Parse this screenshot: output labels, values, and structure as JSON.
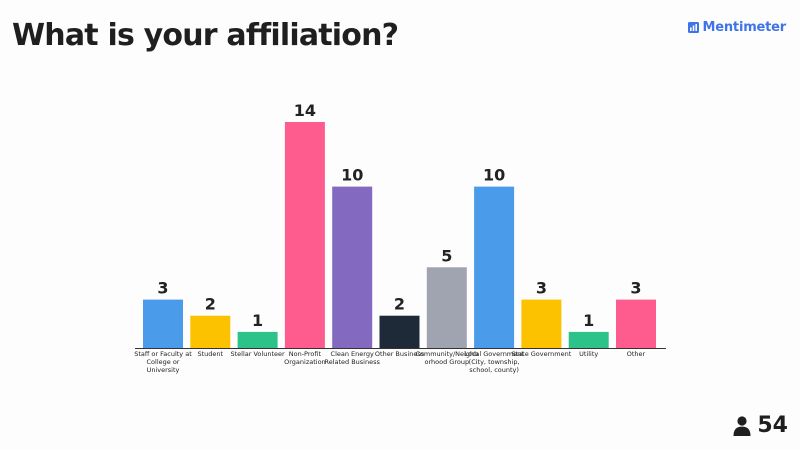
{
  "slide": {
    "title": "What is your affiliation?"
  },
  "brand": {
    "name": "Mentimeter",
    "color": "#3e74e8",
    "icon": "mentimeter-logo-icon"
  },
  "participants": {
    "icon": "user-icon",
    "count": "54"
  },
  "chart_data": {
    "type": "bar",
    "title": "What is your affiliation?",
    "xlabel": "",
    "ylabel": "",
    "ylim": [
      0,
      14
    ],
    "grid": false,
    "legend": "none",
    "categories": [
      "Staff or Faculty at College or University",
      "Student",
      "Stellar Volunteer",
      "Non-Profit Organization",
      "Clean Energy Related Business",
      "Other Business",
      "Community/Neighborhood Group",
      "Local Government (City, township, school, county)",
      "State Government",
      "Utility",
      "Other"
    ],
    "values": [
      3,
      2,
      1,
      14,
      10,
      2,
      5,
      10,
      3,
      1,
      3
    ],
    "colors": [
      "#4a9cea",
      "#fcc200",
      "#2ec28b",
      "#fe5c8f",
      "#8369c0",
      "#1f2a38",
      "#a0a3b0",
      "#4a9cea",
      "#fcc200",
      "#2ec28b",
      "#fe5c8f"
    ]
  }
}
